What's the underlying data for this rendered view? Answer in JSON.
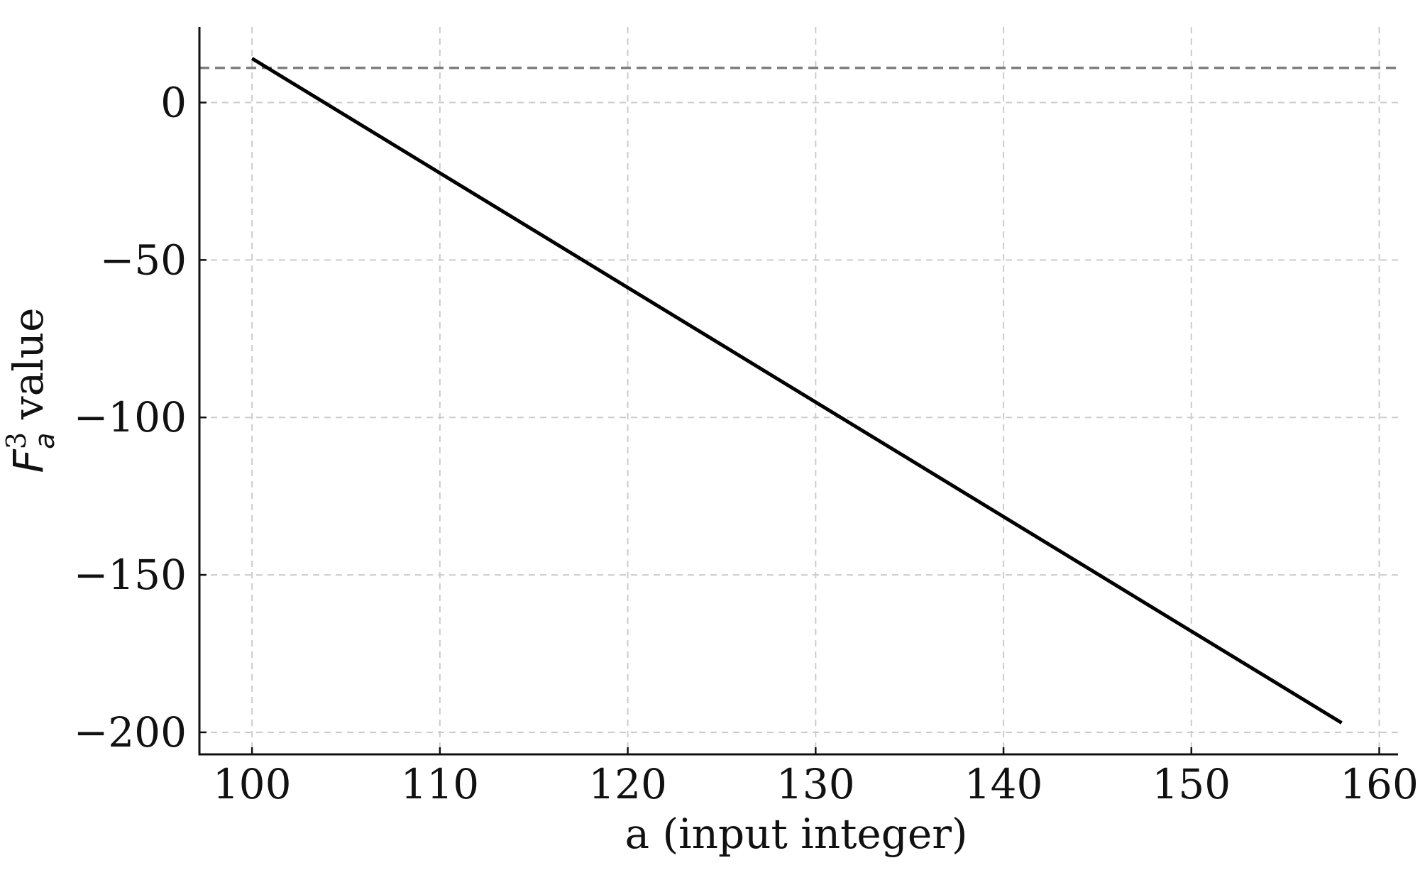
{
  "chart_data": {
    "type": "line",
    "title": "",
    "xlabel": "a (input integer)",
    "ylabel": {
      "base": "F",
      "superscript": "3",
      "subscript": "a",
      "suffix": " value"
    },
    "xlim": [
      97.2,
      161
    ],
    "ylim": [
      -207,
      24
    ],
    "x_ticks": [
      100,
      110,
      120,
      130,
      140,
      150,
      160
    ],
    "y_ticks": [
      0,
      -50,
      -100,
      -150,
      -200
    ],
    "x_tick_labels": [
      "100",
      "110",
      "120",
      "130",
      "140",
      "150",
      "160"
    ],
    "y_tick_labels": [
      "0",
      "−50",
      "−100",
      "−150",
      "−200"
    ],
    "grid": true,
    "series": [
      {
        "x": [
          100,
          158
        ],
        "y": [
          14,
          -197
        ],
        "color": "#000000",
        "style": "solid"
      }
    ],
    "reference_lines": [
      {
        "orientation": "horizontal",
        "y": 11,
        "color": "#808080",
        "style": "dashed"
      }
    ]
  }
}
